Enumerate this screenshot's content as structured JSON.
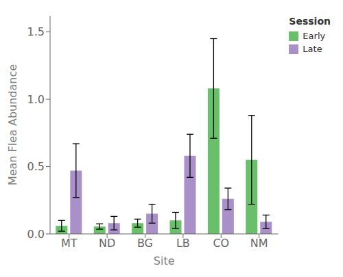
{
  "chart_data": {
    "type": "bar",
    "xlabel": "Site",
    "ylabel": "Mean Flea Abundance",
    "categories": [
      "MT",
      "ND",
      "BG",
      "LB",
      "CO",
      "NM"
    ],
    "series": [
      {
        "name": "Early",
        "color": "#6abf6a",
        "values": [
          0.06,
          0.055,
          0.08,
          0.1,
          1.08,
          0.55
        ],
        "errors": [
          0.04,
          0.02,
          0.03,
          0.06,
          0.37,
          0.33
        ]
      },
      {
        "name": "Late",
        "color": "#a990c9",
        "values": [
          0.47,
          0.08,
          0.15,
          0.58,
          0.26,
          0.09
        ],
        "errors": [
          0.2,
          0.05,
          0.07,
          0.16,
          0.08,
          0.05
        ]
      }
    ],
    "ylim": [
      0,
      1.62
    ],
    "yticks": [
      {
        "value": 0,
        "label": "0.0"
      },
      0.5,
      {
        "value": 1,
        "label": "1.0"
      },
      1.5
    ],
    "grid": false,
    "legend": "right",
    "legend_title": "Session"
  }
}
